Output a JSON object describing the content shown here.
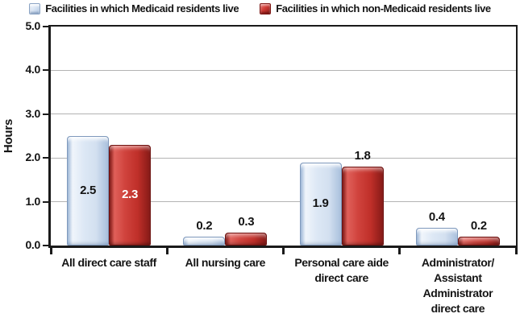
{
  "chart_data": {
    "type": "bar",
    "title": "",
    "ylabel": "Hours",
    "xlabel": "",
    "ylim": [
      0,
      5.0
    ],
    "ytick_step": 1.0,
    "yticks": [
      "0.0",
      "1.0",
      "2.0",
      "3.0",
      "4.0",
      "5.0"
    ],
    "grid": true,
    "legend_position": "top",
    "categories": [
      "All direct care staff",
      "All nursing care",
      "Personal care aide\ndirect care",
      "Administrator/\nAssistant\nAdministrator\ndirect care"
    ],
    "series": [
      {
        "name": "Facilities in which Medicaid residents live",
        "color": "#d3e0f0",
        "inside_label_color": "#141414",
        "values": [
          2.5,
          0.2,
          1.9,
          0.4
        ],
        "labels": [
          "2.5",
          "0.2",
          "1.9",
          "0.4"
        ],
        "label_positions": [
          "inside",
          "above",
          "inside",
          "above"
        ]
      },
      {
        "name": "Facilities in which non-Medicaid residents live",
        "color": "#bf2f29",
        "inside_label_color": "#ffffff",
        "values": [
          2.3,
          0.3,
          1.8,
          0.2
        ],
        "labels": [
          "2.3",
          "0.3",
          "1.8",
          "0.2"
        ],
        "label_positions": [
          "inside",
          "above",
          "above",
          "above"
        ]
      }
    ]
  }
}
